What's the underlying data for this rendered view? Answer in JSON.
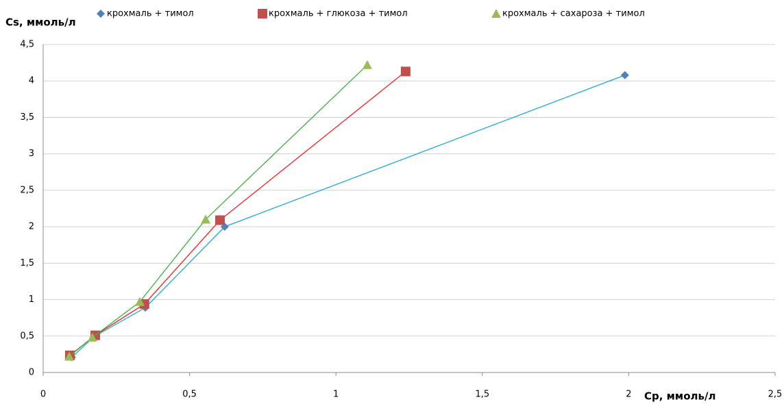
{
  "chart_data": {
    "type": "scatter",
    "ylabel": "Cs, ммоль/л",
    "xlabel": "Cp, ммоль/л",
    "xlim": [
      0,
      2.5
    ],
    "xticks": [
      0,
      {
        "value": 0.5,
        "label": "0,5"
      },
      1,
      {
        "value": 1.5,
        "label": "1,5"
      },
      2,
      {
        "value": 2.5,
        "label": "2,5"
      }
    ],
    "ylim": [
      0,
      4.5
    ],
    "yticks": [
      0,
      {
        "value": 0.5,
        "label": "0,5"
      },
      1,
      {
        "value": 1.5,
        "label": "1,5"
      },
      2,
      {
        "value": 2.5,
        "label": "2,5"
      },
      3,
      {
        "value": 3.5,
        "label": "3,5"
      },
      4,
      {
        "value": 4.5,
        "label": "4,5"
      }
    ],
    "grid": true,
    "legend": "top",
    "series": [
      {
        "name": "крохмаль + тимол",
        "marker": "diamond",
        "color": "#4f81bd",
        "line_color": "#1fa6e0",
        "x": [
          0.098,
          0.173,
          0.349,
          0.62,
          1.987
        ],
        "values": [
          0.21,
          0.49,
          0.89,
          2.0,
          4.08
        ]
      },
      {
        "name": "крохмаль + глюкоза + тимол",
        "marker": "square",
        "color": "#c0504d",
        "line_color": "#f02020",
        "x": [
          0.091,
          0.178,
          0.346,
          0.604,
          1.238
        ],
        "values": [
          0.235,
          0.51,
          0.94,
          2.09,
          4.13
        ]
      },
      {
        "name": "крохмаль + сахароза + тимол",
        "marker": "triangle",
        "color": "#9bbb59",
        "line_color": "#3fae3f",
        "x": [
          0.089,
          0.168,
          0.33,
          0.555,
          1.107
        ],
        "values": [
          0.22,
          0.48,
          0.97,
          2.1,
          4.22
        ]
      }
    ]
  }
}
